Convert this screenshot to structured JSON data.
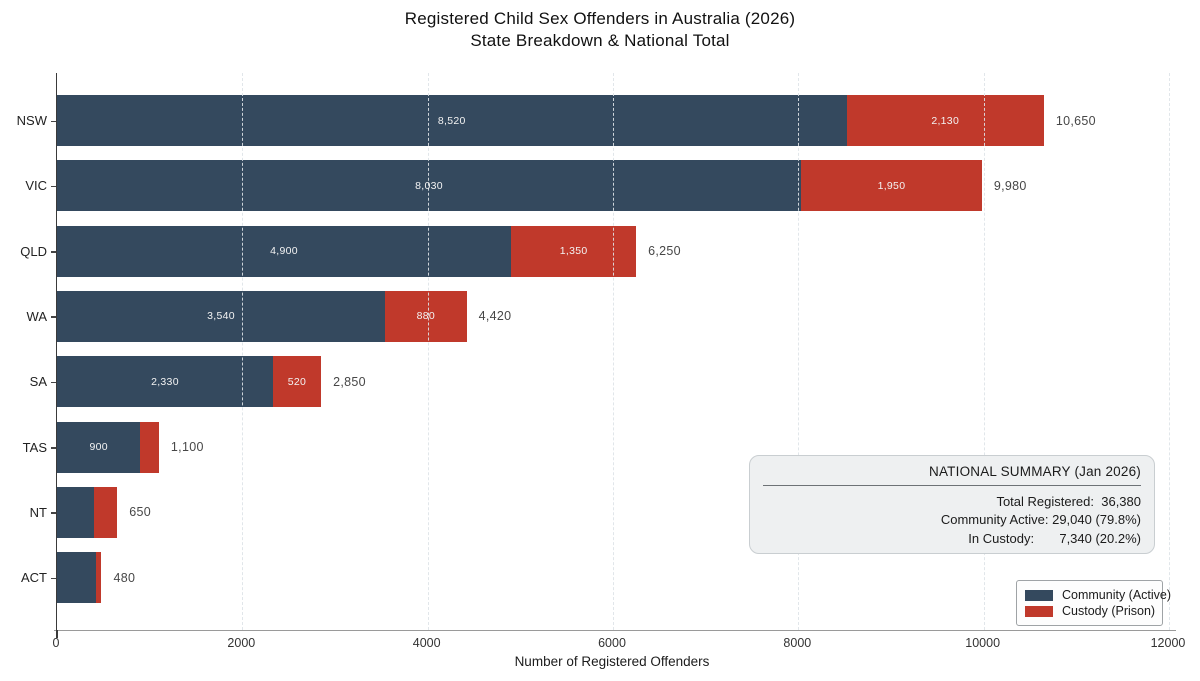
{
  "title": {
    "line1": "Registered Child Sex Offenders in Australia (2026)",
    "line2": "State Breakdown & National Total"
  },
  "colors": {
    "community": "#34495E",
    "custody": "#C0392B",
    "total_label": "#474747",
    "summary_bg": "#EEF0F1",
    "grid": "#DEE3E8"
  },
  "chart_data": {
    "type": "bar",
    "orientation": "horizontal",
    "stacked": true,
    "title": "Registered Child Sex Offenders in Australia (2026) — State Breakdown & National Total",
    "xlabel": "Number of Registered Offenders",
    "ylabel": "",
    "xlim": [
      0,
      12000
    ],
    "xticks": [
      0,
      2000,
      4000,
      6000,
      8000,
      10000,
      12000
    ],
    "xtick_labels": [
      "0",
      "2000",
      "4000",
      "6000",
      "8000",
      "10000",
      "12000"
    ],
    "grid": "vertical-dashed",
    "legend_position": "lower-right",
    "categories": [
      "NSW",
      "VIC",
      "QLD",
      "WA",
      "SA",
      "TAS",
      "NT",
      "ACT"
    ],
    "series": [
      {
        "name": "Community (Active)",
        "color": "#34495E",
        "values": [
          8520,
          8030,
          4900,
          3540,
          2330,
          900,
          400,
          420
        ],
        "labels": [
          "8,520",
          "8,030",
          "4,900",
          "3,540",
          "2,330",
          "900",
          "",
          ""
        ]
      },
      {
        "name": "Custody (Prison)",
        "color": "#C0392B",
        "values": [
          2130,
          1950,
          1350,
          880,
          520,
          200,
          250,
          60
        ],
        "labels": [
          "2,130",
          "1,950",
          "1,350",
          "880",
          "520",
          "",
          "",
          ""
        ]
      }
    ],
    "totals": [
      10650,
      9980,
      6250,
      4420,
      2850,
      1100,
      650,
      480
    ],
    "total_labels": [
      "10,650",
      "9,980",
      "6,250",
      "4,420",
      "2,850",
      "1,100",
      "650",
      "480"
    ]
  },
  "summary_box": {
    "title": "NATIONAL SUMMARY (Jan 2026)",
    "lines": [
      "Total Registered:  36,380",
      "Community Active: 29,040 (79.8%)",
      "In Custody:       7,340 (20.2%)"
    ]
  },
  "legend": {
    "entries": [
      {
        "label": "Community (Active)",
        "color": "#34495E"
      },
      {
        "label": "Custody (Prison)",
        "color": "#C0392B"
      }
    ]
  }
}
